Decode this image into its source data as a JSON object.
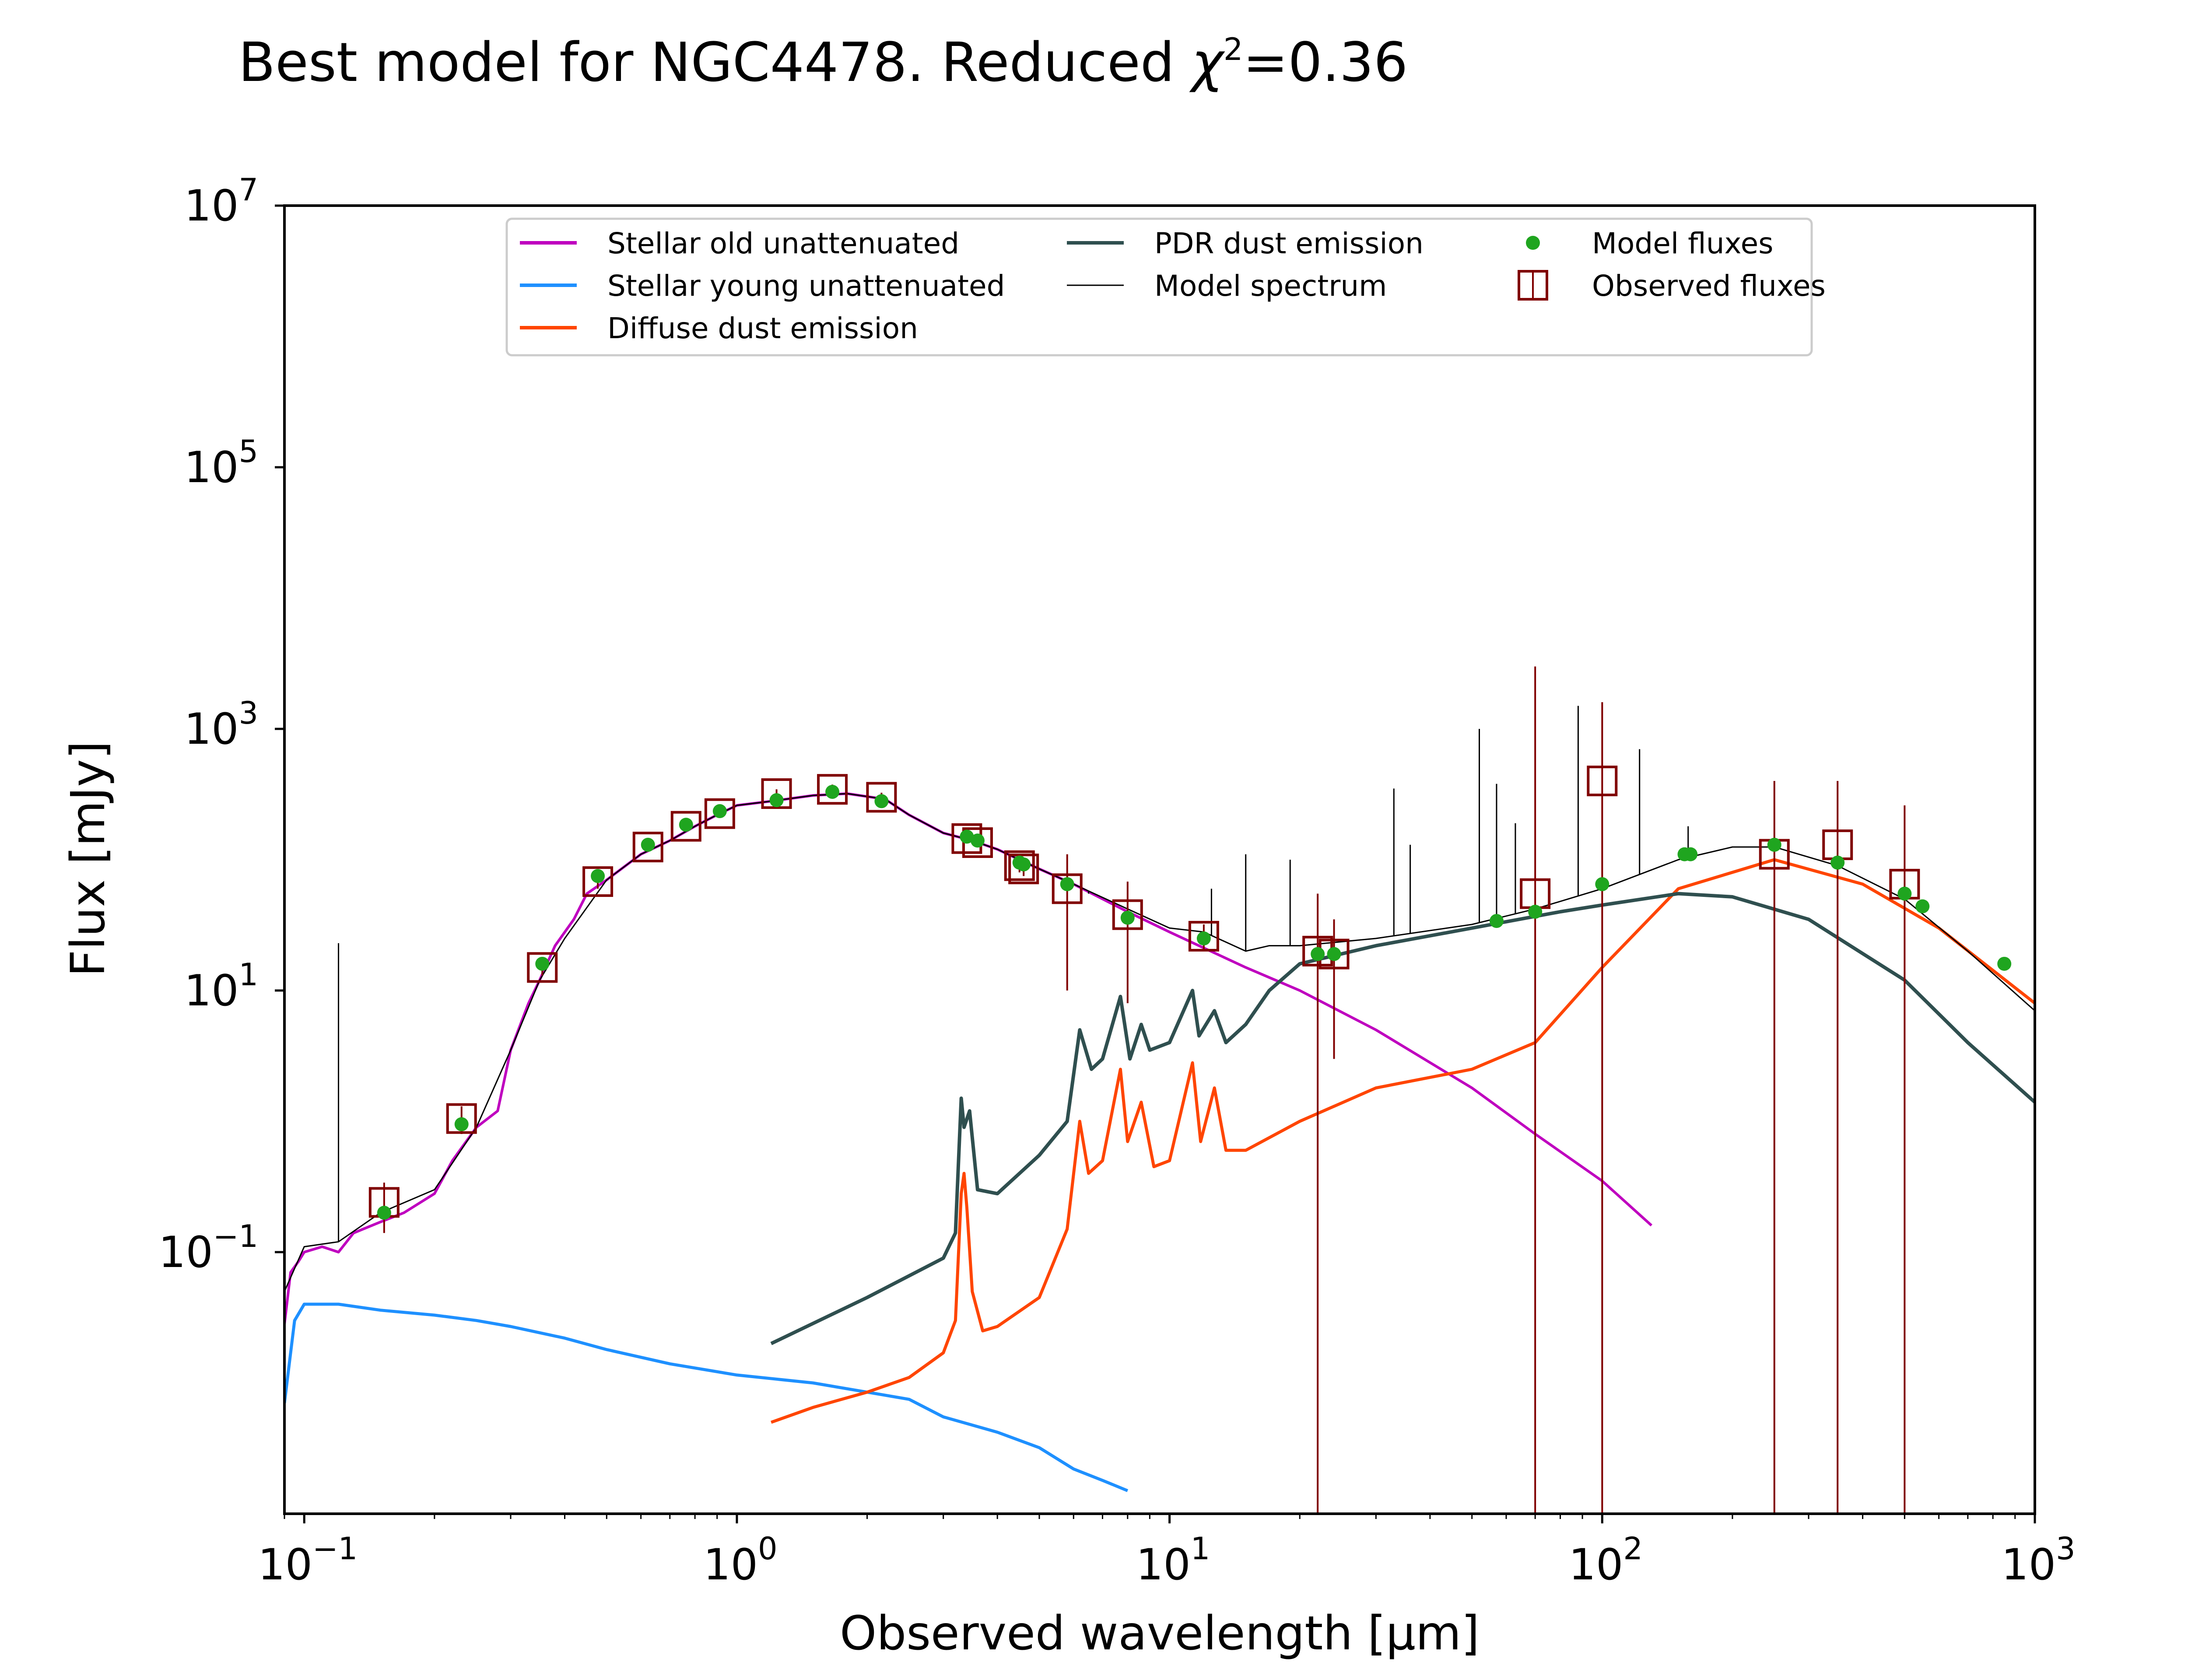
{
  "colors": {
    "stellar_old": "#bf00bf",
    "stellar_young": "#1e90ff",
    "diffuse_dust": "#ff4500",
    "pdr_dust": "#2f4f4f",
    "model_spectrum": "#000000",
    "model_fluxes": "#1fa51f",
    "observed_fluxes": "#800000"
  },
  "chart_data": {
    "type": "line",
    "title_prefix": "Best model for NGC4478. Reduced ",
    "title_chi": "χ",
    "title_chi_exp": "2",
    "title_value": "=0.36",
    "xlabel": "Observed wavelength [μm]",
    "ylabel": "Flux [mJy]",
    "xscale": "log",
    "yscale": "log",
    "xlim": [
      0.09,
      1000
    ],
    "ylim": [
      0.001,
      10000000
    ],
    "xticks": [
      {
        "value": 0.1,
        "base": "10",
        "exp": "−1"
      },
      {
        "value": 1,
        "base": "10",
        "exp": "0"
      },
      {
        "value": 10,
        "base": "10",
        "exp": "1"
      },
      {
        "value": 100,
        "base": "10",
        "exp": "2"
      },
      {
        "value": 1000,
        "base": "10",
        "exp": "3"
      }
    ],
    "yticks": [
      {
        "value": 0.1,
        "base": "10",
        "exp": "−1"
      },
      {
        "value": 10,
        "base": "10",
        "exp": "1"
      },
      {
        "value": 1000,
        "base": "10",
        "exp": "3"
      },
      {
        "value": 100000,
        "base": "10",
        "exp": "5"
      },
      {
        "value": 10000000,
        "base": "10",
        "exp": "7"
      }
    ],
    "grid": false,
    "legend_position": "top-center",
    "legend": [
      {
        "label": "Stellar old unattenuated",
        "series": "stellar_old",
        "marker": "line"
      },
      {
        "label": "Stellar young unattenuated",
        "series": "stellar_young",
        "marker": "line"
      },
      {
        "label": "Diffuse dust emission",
        "series": "diffuse_dust",
        "marker": "line"
      },
      {
        "label": "PDR dust emission",
        "series": "pdr_dust",
        "marker": "line"
      },
      {
        "label": "Model spectrum",
        "series": "model_spectrum",
        "marker": "thinline"
      },
      {
        "label": "Model fluxes",
        "series": "model_fluxes",
        "marker": "dot"
      },
      {
        "label": "Observed fluxes",
        "series": "observed_fluxes",
        "marker": "square"
      }
    ],
    "series": [
      {
        "key": "stellar_old",
        "points": [
          [
            0.09,
            0.028
          ],
          [
            0.093,
            0.07
          ],
          [
            0.097,
            0.085
          ],
          [
            0.1,
            0.1
          ],
          [
            0.11,
            0.11
          ],
          [
            0.12,
            0.1
          ],
          [
            0.13,
            0.14
          ],
          [
            0.15,
            0.17
          ],
          [
            0.17,
            0.2
          ],
          [
            0.2,
            0.28
          ],
          [
            0.22,
            0.5
          ],
          [
            0.25,
            0.9
          ],
          [
            0.28,
            1.2
          ],
          [
            0.3,
            3.5
          ],
          [
            0.33,
            8
          ],
          [
            0.35,
            12
          ],
          [
            0.38,
            22
          ],
          [
            0.42,
            35
          ],
          [
            0.45,
            55
          ],
          [
            0.5,
            70
          ],
          [
            0.6,
            110
          ],
          [
            0.7,
            140
          ],
          [
            0.8,
            180
          ],
          [
            0.9,
            220
          ],
          [
            1.0,
            260
          ],
          [
            1.2,
            280
          ],
          [
            1.5,
            310
          ],
          [
            1.8,
            320
          ],
          [
            2.2,
            290
          ],
          [
            2.5,
            220
          ],
          [
            3.0,
            160
          ],
          [
            3.5,
            140
          ],
          [
            4.0,
            120
          ],
          [
            4.5,
            100
          ],
          [
            5.0,
            85
          ],
          [
            6.0,
            65
          ],
          [
            8.0,
            40
          ],
          [
            10.0,
            28
          ],
          [
            15.0,
            15
          ],
          [
            20.0,
            10
          ],
          [
            30.0,
            5
          ],
          [
            50.0,
            1.8
          ],
          [
            70.0,
            0.8
          ],
          [
            100.0,
            0.35
          ],
          [
            130.0,
            0.16
          ]
        ]
      },
      {
        "key": "stellar_young",
        "points": [
          [
            0.09,
            0.007
          ],
          [
            0.095,
            0.03
          ],
          [
            0.1,
            0.04
          ],
          [
            0.12,
            0.04
          ],
          [
            0.15,
            0.036
          ],
          [
            0.2,
            0.033
          ],
          [
            0.25,
            0.03
          ],
          [
            0.3,
            0.027
          ],
          [
            0.4,
            0.022
          ],
          [
            0.5,
            0.018
          ],
          [
            0.7,
            0.014
          ],
          [
            1.0,
            0.0115
          ],
          [
            1.5,
            0.01
          ],
          [
            2.0,
            0.0085
          ],
          [
            2.5,
            0.0075
          ],
          [
            3.0,
            0.0055
          ],
          [
            4.0,
            0.0042
          ],
          [
            5.0,
            0.0032
          ],
          [
            6.0,
            0.0022
          ],
          [
            7.0,
            0.0018
          ],
          [
            8.0,
            0.0015
          ]
        ]
      },
      {
        "key": "diffuse_dust",
        "points": [
          [
            1.2,
            0.005
          ],
          [
            1.5,
            0.0065
          ],
          [
            2.0,
            0.0085
          ],
          [
            2.5,
            0.011
          ],
          [
            3.0,
            0.017
          ],
          [
            3.2,
            0.03
          ],
          [
            3.3,
            0.28
          ],
          [
            3.35,
            0.4
          ],
          [
            3.4,
            0.22
          ],
          [
            3.5,
            0.05
          ],
          [
            3.7,
            0.025
          ],
          [
            4.0,
            0.027
          ],
          [
            5.0,
            0.045
          ],
          [
            5.8,
            0.15
          ],
          [
            6.2,
            1.0
          ],
          [
            6.5,
            0.4
          ],
          [
            7.0,
            0.5
          ],
          [
            7.7,
            2.5
          ],
          [
            8.0,
            0.7
          ],
          [
            8.6,
            1.4
          ],
          [
            9.2,
            0.45
          ],
          [
            10.0,
            0.5
          ],
          [
            11.3,
            2.8
          ],
          [
            11.8,
            0.7
          ],
          [
            12.7,
            1.8
          ],
          [
            13.5,
            0.6
          ],
          [
            15.0,
            0.6
          ],
          [
            20.0,
            1.0
          ],
          [
            30.0,
            1.8
          ],
          [
            50.0,
            2.5
          ],
          [
            70.0,
            4.0
          ],
          [
            100.0,
            15
          ],
          [
            150.0,
            60
          ],
          [
            250.0,
            100
          ],
          [
            400.0,
            65
          ],
          [
            600.0,
            30
          ],
          [
            1000.0,
            8
          ]
        ]
      },
      {
        "key": "pdr_dust",
        "points": [
          [
            1.2,
            0.02
          ],
          [
            2.0,
            0.045
          ],
          [
            3.0,
            0.09
          ],
          [
            3.2,
            0.14
          ],
          [
            3.3,
            1.5
          ],
          [
            3.35,
            0.9
          ],
          [
            3.45,
            1.2
          ],
          [
            3.6,
            0.3
          ],
          [
            4.0,
            0.28
          ],
          [
            5.0,
            0.55
          ],
          [
            5.8,
            1.0
          ],
          [
            6.2,
            5.0
          ],
          [
            6.6,
            2.5
          ],
          [
            7.0,
            3.0
          ],
          [
            7.7,
            9.0
          ],
          [
            8.1,
            3.0
          ],
          [
            8.6,
            5.5
          ],
          [
            9.0,
            3.5
          ],
          [
            10.0,
            4.0
          ],
          [
            11.3,
            10.0
          ],
          [
            11.7,
            4.5
          ],
          [
            12.7,
            7.0
          ],
          [
            13.5,
            4.0
          ],
          [
            15.0,
            5.5
          ],
          [
            17.0,
            10
          ],
          [
            20.0,
            16
          ],
          [
            30.0,
            22
          ],
          [
            50.0,
            30
          ],
          [
            80.0,
            40
          ],
          [
            100.0,
            45
          ],
          [
            150.0,
            55
          ],
          [
            200.0,
            52
          ],
          [
            300.0,
            35
          ],
          [
            500.0,
            12
          ],
          [
            700.0,
            4
          ],
          [
            1000.0,
            1.4
          ]
        ]
      },
      {
        "key": "model_spectrum",
        "points": [
          [
            0.09,
            0.05
          ],
          [
            0.1,
            0.11
          ],
          [
            0.12,
            0.12
          ],
          [
            0.15,
            0.2
          ],
          [
            0.2,
            0.3
          ],
          [
            0.25,
            0.9
          ],
          [
            0.3,
            3.5
          ],
          [
            0.35,
            12
          ],
          [
            0.4,
            25
          ],
          [
            0.5,
            70
          ],
          [
            0.6,
            110
          ],
          [
            0.7,
            140
          ],
          [
            0.8,
            180
          ],
          [
            0.9,
            220
          ],
          [
            1.0,
            260
          ],
          [
            1.2,
            280
          ],
          [
            1.5,
            310
          ],
          [
            1.8,
            320
          ],
          [
            2.2,
            290
          ],
          [
            2.5,
            220
          ],
          [
            3.0,
            160
          ],
          [
            3.5,
            140
          ],
          [
            4.0,
            120
          ],
          [
            4.5,
            100
          ],
          [
            5.0,
            85
          ],
          [
            6.0,
            65
          ],
          [
            8.0,
            42
          ],
          [
            10.0,
            30
          ],
          [
            12.0,
            28
          ],
          [
            15.0,
            20
          ],
          [
            17.0,
            22
          ],
          [
            20.0,
            22
          ],
          [
            30.0,
            25
          ],
          [
            50.0,
            32
          ],
          [
            70.0,
            42
          ],
          [
            100.0,
            60
          ],
          [
            150.0,
            100
          ],
          [
            200.0,
            125
          ],
          [
            250.0,
            125
          ],
          [
            350.0,
            90
          ],
          [
            500.0,
            50
          ],
          [
            700.0,
            20
          ],
          [
            1000.0,
            7
          ]
        ]
      }
    ],
    "model_spectrum_lines": [
      {
        "x": 0.12,
        "y": 23
      },
      {
        "x": 6.5,
        "y": 55
      },
      {
        "x": 12.5,
        "y": 60
      },
      {
        "x": 15.0,
        "y": 110
      },
      {
        "x": 19.0,
        "y": 100
      },
      {
        "x": 33.0,
        "y": 350
      },
      {
        "x": 36.0,
        "y": 130
      },
      {
        "x": 52.0,
        "y": 1000
      },
      {
        "x": 57.0,
        "y": 380
      },
      {
        "x": 63.0,
        "y": 190
      },
      {
        "x": 88.0,
        "y": 1500
      },
      {
        "x": 122.0,
        "y": 700
      },
      {
        "x": 158.0,
        "y": 180
      }
    ],
    "model_fluxes": [
      {
        "x": 0.153,
        "y": 0.2
      },
      {
        "x": 0.231,
        "y": 0.95
      },
      {
        "x": 0.355,
        "y": 16
      },
      {
        "x": 0.477,
        "y": 75
      },
      {
        "x": 0.623,
        "y": 130
      },
      {
        "x": 0.763,
        "y": 185
      },
      {
        "x": 0.913,
        "y": 235
      },
      {
        "x": 1.235,
        "y": 285
      },
      {
        "x": 1.662,
        "y": 330
      },
      {
        "x": 2.159,
        "y": 280
      },
      {
        "x": 3.4,
        "y": 150
      },
      {
        "x": 3.6,
        "y": 140
      },
      {
        "x": 4.5,
        "y": 95
      },
      {
        "x": 4.6,
        "y": 92
      },
      {
        "x": 5.8,
        "y": 65
      },
      {
        "x": 8.0,
        "y": 36
      },
      {
        "x": 12.0,
        "y": 25
      },
      {
        "x": 22.0,
        "y": 19
      },
      {
        "x": 24.0,
        "y": 19
      },
      {
        "x": 57.0,
        "y": 34
      },
      {
        "x": 70.0,
        "y": 40
      },
      {
        "x": 100.0,
        "y": 65
      },
      {
        "x": 155.0,
        "y": 110
      },
      {
        "x": 160.0,
        "y": 110
      },
      {
        "x": 250.0,
        "y": 130
      },
      {
        "x": 350.0,
        "y": 95
      },
      {
        "x": 500.0,
        "y": 55
      },
      {
        "x": 550.0,
        "y": 44
      },
      {
        "x": 850.0,
        "y": 16
      }
    ],
    "observed_fluxes": [
      {
        "x": 0.153,
        "y": 0.24,
        "lo": 0.14,
        "hi": 0.34
      },
      {
        "x": 0.231,
        "y": 1.05,
        "lo": 0.8,
        "hi": 1.3
      },
      {
        "x": 0.355,
        "y": 15,
        "lo": 13,
        "hi": 17
      },
      {
        "x": 0.477,
        "y": 68,
        "lo": 60,
        "hi": 76
      },
      {
        "x": 0.623,
        "y": 125,
        "lo": 115,
        "hi": 135
      },
      {
        "x": 0.763,
        "y": 180,
        "lo": 165,
        "hi": 195
      },
      {
        "x": 0.913,
        "y": 225,
        "lo": 210,
        "hi": 240
      },
      {
        "x": 1.235,
        "y": 320,
        "lo": 295,
        "hi": 345
      },
      {
        "x": 1.662,
        "y": 345,
        "lo": 315,
        "hi": 375
      },
      {
        "x": 2.159,
        "y": 300,
        "lo": 275,
        "hi": 325
      },
      {
        "x": 3.4,
        "y": 145,
        "lo": 133,
        "hi": 157
      },
      {
        "x": 3.6,
        "y": 135,
        "lo": 124,
        "hi": 146
      },
      {
        "x": 4.5,
        "y": 90,
        "lo": 80,
        "hi": 100
      },
      {
        "x": 4.6,
        "y": 85,
        "lo": 75,
        "hi": 95
      },
      {
        "x": 5.8,
        "y": 60,
        "lo": 10,
        "hi": 110
      },
      {
        "x": 8.0,
        "y": 38,
        "lo": 8,
        "hi": 68
      },
      {
        "x": 12.0,
        "y": 26,
        "lo": 20,
        "hi": 32
      },
      {
        "x": 22.0,
        "y": 20,
        "lo": 0.001,
        "hi": 55
      },
      {
        "x": 24.0,
        "y": 19,
        "lo": 3,
        "hi": 35
      },
      {
        "x": 70.0,
        "y": 55,
        "lo": 0.001,
        "hi": 3000
      },
      {
        "x": 100.0,
        "y": 400,
        "lo": 0.001,
        "hi": 1600
      },
      {
        "x": 250.0,
        "y": 110,
        "lo": 0.001,
        "hi": 400
      },
      {
        "x": 350.0,
        "y": 130,
        "lo": 0.001,
        "hi": 400
      },
      {
        "x": 500.0,
        "y": 65,
        "lo": 0.001,
        "hi": 260
      }
    ]
  }
}
